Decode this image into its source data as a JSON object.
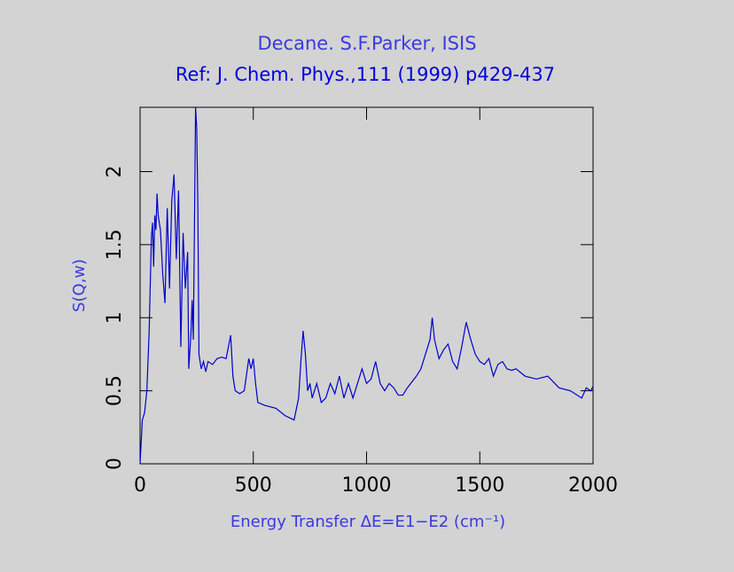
{
  "chart_data": {
    "type": "line",
    "title": "Decane. S.F.Parker, ISIS",
    "subtitle": "Ref: J. Chem. Phys.,111 (1999) p429-437",
    "xlabel": "Energy Transfer ΔE=E1−E2 (cm⁻¹)",
    "ylabel": "S(Q,w)",
    "color": "#0000cc",
    "xlim": [
      0,
      2000
    ],
    "ylim": [
      0,
      2.44
    ],
    "xticks": [
      0,
      500,
      1000,
      1500,
      2000
    ],
    "yticks": [
      0,
      0.5,
      1,
      1.5,
      2
    ],
    "x": [
      0,
      10,
      20,
      30,
      40,
      50,
      55,
      60,
      65,
      70,
      75,
      80,
      90,
      100,
      110,
      120,
      130,
      140,
      150,
      160,
      170,
      180,
      190,
      200,
      210,
      215,
      225,
      230,
      235,
      240,
      245,
      250,
      255,
      260,
      270,
      280,
      290,
      300,
      320,
      340,
      360,
      380,
      400,
      410,
      420,
      440,
      460,
      480,
      490,
      500,
      510,
      520,
      550,
      600,
      640,
      680,
      700,
      710,
      720,
      730,
      740,
      750,
      760,
      780,
      800,
      820,
      840,
      860,
      880,
      900,
      920,
      940,
      960,
      980,
      1000,
      1020,
      1040,
      1060,
      1080,
      1100,
      1120,
      1140,
      1160,
      1180,
      1200,
      1220,
      1240,
      1260,
      1280,
      1290,
      1300,
      1320,
      1340,
      1360,
      1380,
      1400,
      1420,
      1440,
      1460,
      1480,
      1500,
      1520,
      1540,
      1560,
      1580,
      1600,
      1620,
      1640,
      1660,
      1700,
      1750,
      1800,
      1850,
      1900,
      1950,
      1970,
      1990,
      2000
    ],
    "values": [
      0,
      0.3,
      0.35,
      0.5,
      0.9,
      1.55,
      1.65,
      1.35,
      1.7,
      1.6,
      1.85,
      1.7,
      1.6,
      1.3,
      1.1,
      1.75,
      1.2,
      1.8,
      1.98,
      1.4,
      1.87,
      0.8,
      1.58,
      1.2,
      1.45,
      0.65,
      0.9,
      1.12,
      0.85,
      1.6,
      2.44,
      2.3,
      1.8,
      0.75,
      0.65,
      0.7,
      0.63,
      0.7,
      0.68,
      0.72,
      0.73,
      0.72,
      0.88,
      0.6,
      0.5,
      0.48,
      0.5,
      0.72,
      0.65,
      0.72,
      0.55,
      0.42,
      0.4,
      0.38,
      0.33,
      0.3,
      0.45,
      0.7,
      0.91,
      0.75,
      0.5,
      0.55,
      0.45,
      0.55,
      0.42,
      0.45,
      0.55,
      0.48,
      0.6,
      0.45,
      0.55,
      0.45,
      0.55,
      0.65,
      0.55,
      0.58,
      0.7,
      0.55,
      0.5,
      0.55,
      0.52,
      0.47,
      0.47,
      0.52,
      0.56,
      0.6,
      0.65,
      0.75,
      0.85,
      1.0,
      0.85,
      0.72,
      0.78,
      0.82,
      0.7,
      0.65,
      0.8,
      0.97,
      0.85,
      0.75,
      0.7,
      0.68,
      0.72,
      0.6,
      0.68,
      0.7,
      0.65,
      0.64,
      0.65,
      0.6,
      0.58,
      0.6,
      0.52,
      0.5,
      0.45,
      0.52,
      0.5,
      0.53
    ]
  }
}
